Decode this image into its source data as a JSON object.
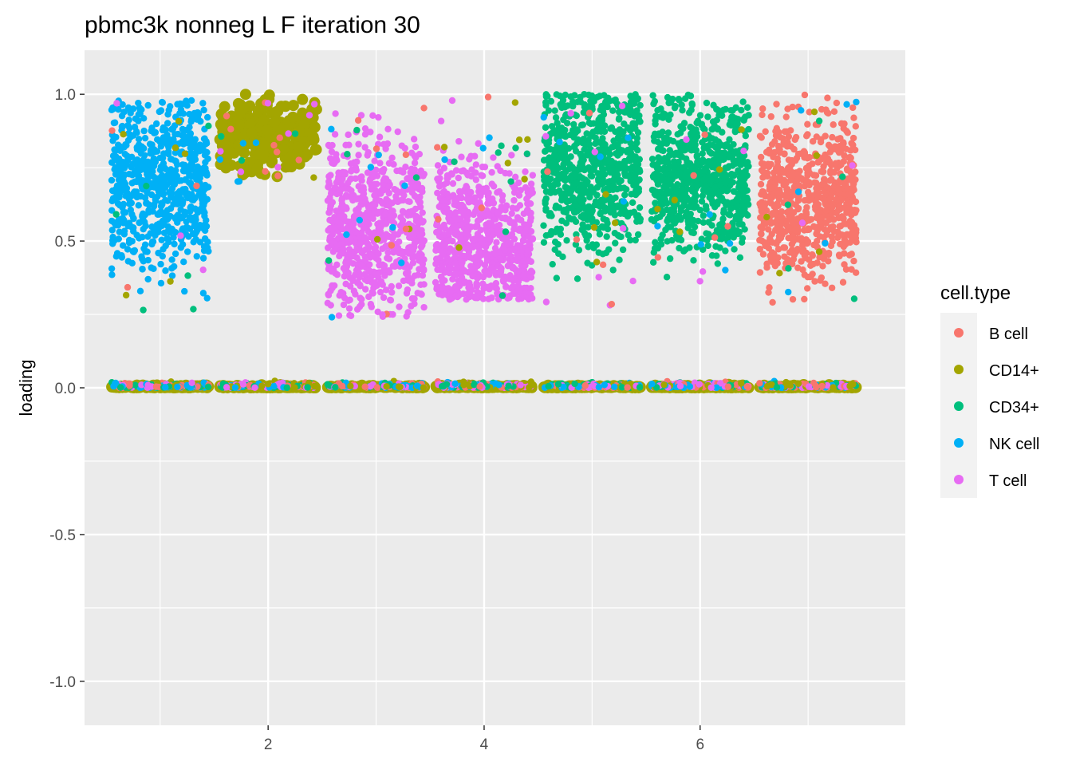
{
  "chart_data": {
    "type": "scatter",
    "title": "pbmc3k nonneg L F iteration 30",
    "xlabel": "",
    "ylabel": "loading",
    "xlim": [
      0.3,
      7.9
    ],
    "ylim": [
      -1.15,
      1.15
    ],
    "x_ticks": [
      2,
      4,
      6
    ],
    "x_tick_labels": [
      "2",
      "4",
      "6"
    ],
    "y_ticks": [
      -1.0,
      -0.5,
      0.0,
      0.5,
      1.0
    ],
    "y_tick_labels": [
      "-1.0",
      "-0.5",
      "0.0",
      "0.5",
      "1.0"
    ],
    "grid": true,
    "panel_background": "#EBEBEB",
    "legend": {
      "title": "cell.type",
      "position": "right",
      "entries": [
        {
          "label": "B cell",
          "color": "#F8766D"
        },
        {
          "label": "CD14+",
          "color": "#A3A500"
        },
        {
          "label": "CD34+",
          "color": "#00BF7D"
        },
        {
          "label": "NK cell",
          "color": "#00B0F6"
        },
        {
          "label": "T cell",
          "color": "#E76BF3"
        }
      ]
    },
    "factors": [
      {
        "factor": 1,
        "x_range": [
          0.55,
          1.45
        ],
        "dominant": "NK cell",
        "y_range": [
          0.24,
          0.98
        ],
        "y_center": 0.7
      },
      {
        "factor": 2,
        "x_range": [
          1.55,
          2.45
        ],
        "dominant": "CD14+",
        "y_range": [
          0.69,
          1.0
        ],
        "y_center": 0.86
      },
      {
        "factor": 3,
        "x_range": [
          2.55,
          3.45
        ],
        "dominant": "T cell",
        "y_range": [
          0.24,
          1.0
        ],
        "y_center": 0.55
      },
      {
        "factor": 4,
        "x_range": [
          3.55,
          4.45
        ],
        "dominant": "T cell",
        "y_range": [
          0.3,
          1.0
        ],
        "y_center": 0.5
      },
      {
        "factor": 5,
        "x_range": [
          4.55,
          5.45
        ],
        "dominant": "CD34+",
        "y_range": [
          0.26,
          1.0
        ],
        "y_center": 0.76
      },
      {
        "factor": 6,
        "x_range": [
          5.55,
          6.45
        ],
        "dominant": "CD34+",
        "y_range": [
          0.36,
          1.0
        ],
        "y_center": 0.73
      },
      {
        "factor": 7,
        "x_range": [
          6.55,
          7.45
        ],
        "dominant": "B cell",
        "y_range": [
          0.29,
          1.0
        ],
        "y_center": 0.65
      }
    ],
    "baseline_y": 0.0
  }
}
